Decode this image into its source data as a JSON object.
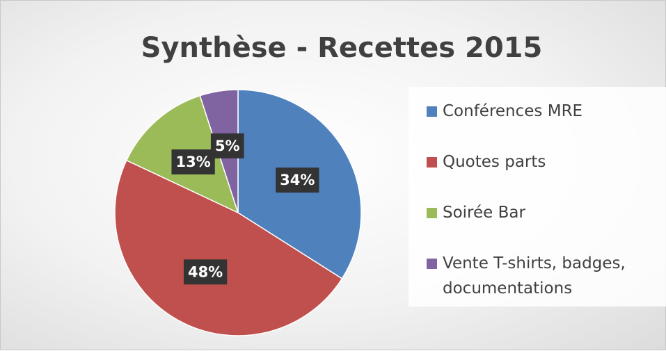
{
  "chart_data": {
    "type": "pie",
    "title": "Synthèse - Recettes 2015",
    "categories": [
      "Conférences MRE",
      "Quotes parts",
      "Soirée Bar",
      "Vente T-shirts, badges, documentations"
    ],
    "values": [
      34,
      48,
      13,
      5
    ],
    "value_labels": [
      "34%",
      "48%",
      "13%",
      "5%"
    ],
    "colors": [
      "#4f81bd",
      "#c0504d",
      "#9bbb59",
      "#8064a2"
    ],
    "legend": "right"
  }
}
